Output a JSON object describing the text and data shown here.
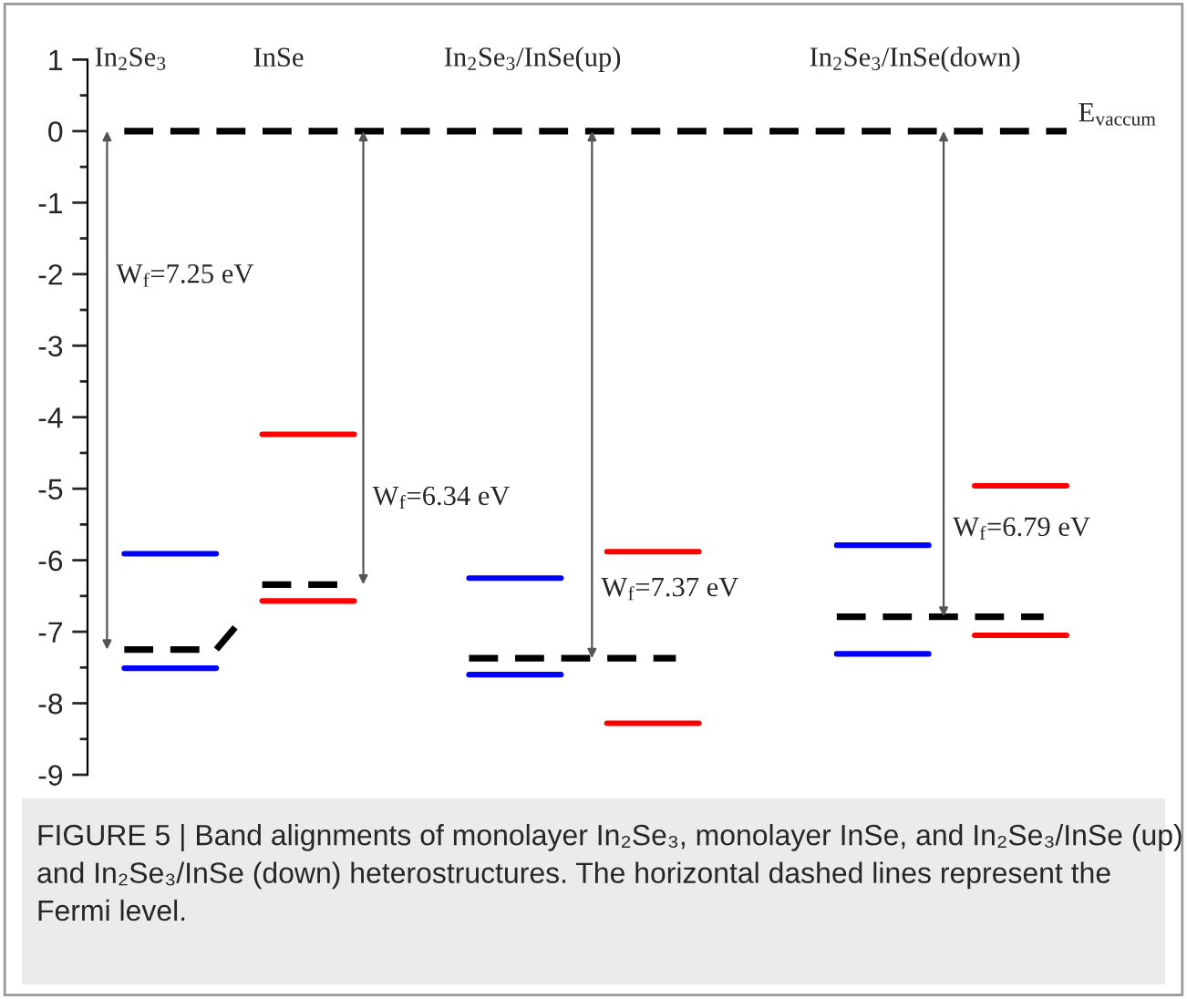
{
  "chart_data": {
    "type": "line",
    "categories": [
      null,
      null,
      null,
      null,
      null,
      null,
      null,
      null,
      null,
      null,
      null,
      null,
      null,
      null,
      null,
      null,
      null,
      null,
      null,
      null,
      null,
      null,
      null,
      null,
      null,
      null,
      null,
      null,
      null,
      null,
      null,
      null,
      null,
      null,
      null,
      null,
      null,
      null,
      null,
      null,
      null,
      null
    ],
    "tick_labels": "y",
    "ylim": [
      -9,
      1
    ],
    "yticks": [
      -9,
      -8,
      -7,
      -6,
      -5,
      -4,
      -3,
      -2,
      -1,
      0,
      1
    ],
    "grid": false,
    "series": [
      {
        "color": "#000000",
        "line_style": "dashed",
        "values": [
          0,
          0,
          0,
          0,
          0,
          0,
          0,
          0,
          0,
          0,
          0,
          0,
          0,
          0,
          0,
          0,
          0,
          0,
          0,
          0,
          0,
          0,
          0,
          0,
          0,
          0,
          0,
          0,
          0,
          0,
          0,
          0,
          0,
          0,
          0,
          0,
          0,
          0,
          0,
          0,
          0,
          0
        ]
      },
      {
        "color": "#0000ff",
        "line_style": "solid",
        "values": [
          -5.91,
          -5.91,
          -5.91,
          -5.91,
          -5.91,
          null,
          null,
          null,
          null,
          null,
          null,
          null,
          null,
          null,
          null,
          null,
          null,
          null,
          null,
          null,
          null,
          null,
          null,
          null,
          null,
          null,
          null,
          null,
          null,
          null,
          null,
          null,
          null,
          null,
          null,
          null,
          null,
          null,
          null,
          null,
          null,
          null
        ]
      },
      {
        "color": "#0000ff",
        "line_style": "solid",
        "values": [
          -7.51,
          -7.51,
          -7.51,
          -7.51,
          -7.51,
          null,
          null,
          null,
          null,
          null,
          null,
          null,
          null,
          null,
          null,
          null,
          null,
          null,
          null,
          null,
          null,
          null,
          null,
          null,
          null,
          null,
          null,
          null,
          null,
          null,
          null,
          null,
          null,
          null,
          null,
          null,
          null,
          null,
          null,
          null,
          null,
          null
        ]
      },
      {
        "color": "#000000",
        "line_style": "dashed",
        "values": [
          -7.25,
          -7.25,
          -7.25,
          -7.25,
          -7.25,
          -6.87,
          null,
          null,
          null,
          null,
          null,
          null,
          null,
          null,
          null,
          null,
          null,
          null,
          null,
          null,
          null,
          null,
          null,
          null,
          null,
          null,
          null,
          null,
          null,
          null,
          null,
          null,
          null,
          null,
          null,
          null,
          null,
          null,
          null,
          null,
          null,
          null
        ]
      },
      {
        "color": "#ff0000",
        "line_style": "solid",
        "values": [
          null,
          null,
          null,
          null,
          null,
          null,
          -4.24,
          -4.24,
          -4.24,
          -4.24,
          -4.24,
          null,
          null,
          null,
          null,
          null,
          null,
          null,
          null,
          null,
          null,
          null,
          null,
          null,
          null,
          null,
          null,
          null,
          null,
          null,
          null,
          null,
          null,
          null,
          null,
          null,
          null,
          null,
          null,
          null,
          null,
          null
        ]
      },
      {
        "color": "#ff0000",
        "line_style": "solid",
        "values": [
          null,
          null,
          null,
          null,
          null,
          null,
          -6.57,
          -6.57,
          -6.57,
          -6.57,
          -6.57,
          null,
          null,
          null,
          null,
          null,
          null,
          null,
          null,
          null,
          null,
          null,
          null,
          null,
          null,
          null,
          null,
          null,
          null,
          null,
          null,
          null,
          null,
          null,
          null,
          null,
          null,
          null,
          null,
          null,
          null,
          null
        ]
      },
      {
        "color": "#000000",
        "line_style": "dashed",
        "values": [
          null,
          null,
          null,
          null,
          null,
          null,
          -6.34,
          -6.34,
          -6.34,
          -6.34,
          -6.34,
          null,
          null,
          null,
          null,
          null,
          null,
          null,
          null,
          null,
          null,
          null,
          null,
          null,
          null,
          null,
          null,
          null,
          null,
          null,
          null,
          null,
          null,
          null,
          null,
          null,
          null,
          null,
          null,
          null,
          null,
          null
        ]
      },
      {
        "color": "#0000ff",
        "line_style": "solid",
        "values": [
          null,
          null,
          null,
          null,
          null,
          null,
          null,
          null,
          null,
          null,
          null,
          null,
          null,
          null,
          null,
          -6.25,
          -6.25,
          -6.25,
          -6.25,
          -6.25,
          null,
          null,
          null,
          null,
          null,
          null,
          null,
          null,
          null,
          null,
          null,
          null,
          null,
          null,
          null,
          null,
          null,
          null,
          null,
          null,
          null,
          null
        ]
      },
      {
        "color": "#0000ff",
        "line_style": "solid",
        "values": [
          null,
          null,
          null,
          null,
          null,
          null,
          null,
          null,
          null,
          null,
          null,
          null,
          null,
          null,
          null,
          -7.6,
          -7.6,
          -7.6,
          -7.6,
          -7.6,
          null,
          null,
          null,
          null,
          null,
          null,
          null,
          null,
          null,
          null,
          null,
          null,
          null,
          null,
          null,
          null,
          null,
          null,
          null,
          null,
          null,
          null
        ]
      },
      {
        "color": "#000000",
        "line_style": "dashed",
        "values": [
          null,
          null,
          null,
          null,
          null,
          null,
          null,
          null,
          null,
          null,
          null,
          null,
          null,
          null,
          null,
          -7.37,
          -7.37,
          -7.37,
          -7.37,
          -7.37,
          -7.37,
          -7.37,
          -7.37,
          -7.37,
          -7.37,
          null,
          null,
          null,
          null,
          null,
          null,
          null,
          null,
          null,
          null,
          null,
          null,
          null,
          null,
          null,
          null,
          null
        ]
      },
      {
        "color": "#ff0000",
        "line_style": "solid",
        "values": [
          null,
          null,
          null,
          null,
          null,
          null,
          null,
          null,
          null,
          null,
          null,
          null,
          null,
          null,
          null,
          null,
          null,
          null,
          null,
          null,
          null,
          -5.88,
          -5.88,
          -5.88,
          -5.88,
          -5.88,
          null,
          null,
          null,
          null,
          null,
          null,
          null,
          null,
          null,
          null,
          null,
          null,
          null,
          null,
          null,
          null
        ]
      },
      {
        "color": "#ff0000",
        "line_style": "solid",
        "values": [
          null,
          null,
          null,
          null,
          null,
          null,
          null,
          null,
          null,
          null,
          null,
          null,
          null,
          null,
          null,
          null,
          null,
          null,
          null,
          null,
          null,
          -8.28,
          -8.28,
          -8.28,
          -8.28,
          -8.28,
          null,
          null,
          null,
          null,
          null,
          null,
          null,
          null,
          null,
          null,
          null,
          null,
          null,
          null,
          null,
          null
        ]
      },
      {
        "color": "#0000ff",
        "line_style": "solid",
        "values": [
          null,
          null,
          null,
          null,
          null,
          null,
          null,
          null,
          null,
          null,
          null,
          null,
          null,
          null,
          null,
          null,
          null,
          null,
          null,
          null,
          null,
          null,
          null,
          null,
          null,
          null,
          null,
          null,
          null,
          null,
          null,
          -5.79,
          -5.79,
          -5.79,
          -5.79,
          -5.79,
          null,
          null,
          null,
          null,
          null,
          null
        ]
      },
      {
        "color": "#0000ff",
        "line_style": "solid",
        "values": [
          null,
          null,
          null,
          null,
          null,
          null,
          null,
          null,
          null,
          null,
          null,
          null,
          null,
          null,
          null,
          null,
          null,
          null,
          null,
          null,
          null,
          null,
          null,
          null,
          null,
          null,
          null,
          null,
          null,
          null,
          null,
          -7.31,
          -7.31,
          -7.31,
          -7.31,
          -7.31,
          null,
          null,
          null,
          null,
          null,
          null
        ]
      },
      {
        "color": "#000000",
        "line_style": "dashed",
        "values": [
          null,
          null,
          null,
          null,
          null,
          null,
          null,
          null,
          null,
          null,
          null,
          null,
          null,
          null,
          null,
          null,
          null,
          null,
          null,
          null,
          null,
          null,
          null,
          null,
          null,
          null,
          null,
          null,
          null,
          null,
          null,
          -6.79,
          -6.79,
          -6.79,
          -6.79,
          -6.79,
          -6.79,
          -6.79,
          -6.79,
          -6.79,
          -6.79,
          null
        ]
      },
      {
        "color": "#ff0000",
        "line_style": "solid",
        "values": [
          null,
          null,
          null,
          null,
          null,
          null,
          null,
          null,
          null,
          null,
          null,
          null,
          null,
          null,
          null,
          null,
          null,
          null,
          null,
          null,
          null,
          null,
          null,
          null,
          null,
          null,
          null,
          null,
          null,
          null,
          null,
          null,
          null,
          null,
          null,
          null,
          null,
          -4.96,
          -4.96,
          -4.96,
          -4.96,
          -4.96
        ]
      },
      {
        "color": "#ff0000",
        "line_style": "solid",
        "values": [
          null,
          null,
          null,
          null,
          null,
          null,
          null,
          null,
          null,
          null,
          null,
          null,
          null,
          null,
          null,
          null,
          null,
          null,
          null,
          null,
          null,
          null,
          null,
          null,
          null,
          null,
          null,
          null,
          null,
          null,
          null,
          null,
          null,
          null,
          null,
          null,
          null,
          -7.05,
          -7.05,
          -7.05,
          -7.05,
          -7.05
        ]
      }
    ],
    "annotations": [
      "In$_{2}$Se$_{3}$",
      "InSe",
      "In$_{2}$Se$_{3}$/InSe(up)",
      "In$_{2}$Se$_{3}$/InSe(down)",
      "E$_{vaccum}$",
      "W$_{f}$=7.25 eV",
      "W$_{f}$=6.34 eV",
      "W$_{f}$=7.37 eV",
      "W$_{f}$=6.79 eV",
      "FIGURE 5 | Band alignments of monolayer In₂Se₃, monolayer InSe, and In₂Se₃/InSe (up) and In₂Se₃/InSe (down) heterostructures. The horizontal dashed lines represent the Fermi level."
    ]
  }
}
